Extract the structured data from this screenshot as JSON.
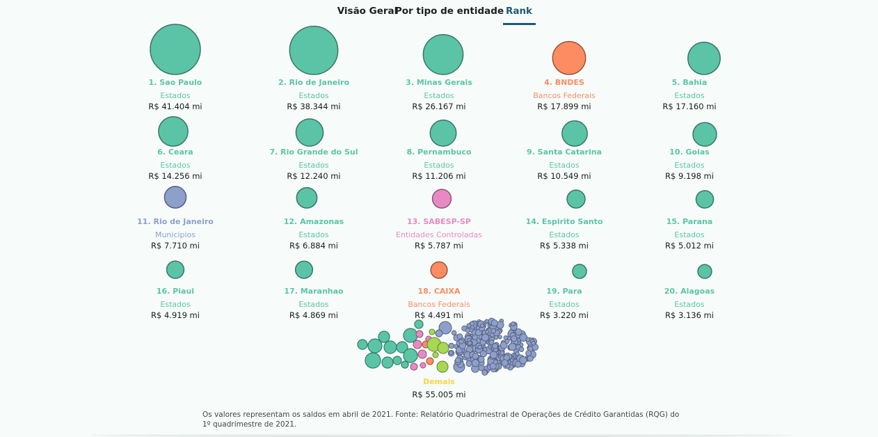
{
  "tabs": [
    {
      "label": "Visão Geral",
      "active": false
    },
    {
      "label": "Por tipo de entidade",
      "active": false
    },
    {
      "label": "Rank",
      "active": true
    }
  ],
  "colors": {
    "Estados": "#5cc4a6",
    "Bancos Federais": "#fd8c63",
    "Municipios": "#8d9fcb",
    "Entidades Controladas": "#e78ac3",
    "Demais": "#f7d44a",
    "outline": "#2e7f67",
    "demais_green": "#a6d854"
  },
  "chart_data": {
    "type": "bubble",
    "unit": "R$ mi",
    "items": [
      {
        "rank": 1,
        "name": "Sao Paulo",
        "category": "Estados",
        "value": 41404,
        "display": "R$ 41.404 mi"
      },
      {
        "rank": 2,
        "name": "Rio de Janeiro",
        "category": "Estados",
        "value": 38344,
        "display": "R$ 38.344 mi"
      },
      {
        "rank": 3,
        "name": "Minas Gerais",
        "category": "Estados",
        "value": 26167,
        "display": "R$ 26.167 mi"
      },
      {
        "rank": 4,
        "name": "BNDES",
        "category": "Bancos Federais",
        "value": 17899,
        "display": "R$ 17.899 mi"
      },
      {
        "rank": 5,
        "name": "Bahia",
        "category": "Estados",
        "value": 17160,
        "display": "R$ 17.160 mi"
      },
      {
        "rank": 6,
        "name": "Ceara",
        "category": "Estados",
        "value": 14256,
        "display": "R$ 14.256 mi"
      },
      {
        "rank": 7,
        "name": "Rio Grande do Sul",
        "category": "Estados",
        "value": 12240,
        "display": "R$ 12.240 mi"
      },
      {
        "rank": 8,
        "name": "Pernambuco",
        "category": "Estados",
        "value": 11206,
        "display": "R$ 11.206 mi"
      },
      {
        "rank": 9,
        "name": "Santa Catarina",
        "category": "Estados",
        "value": 10549,
        "display": "R$ 10.549 mi"
      },
      {
        "rank": 10,
        "name": "Goias",
        "category": "Estados",
        "value": 9198,
        "display": "R$ 9.198 mi"
      },
      {
        "rank": 11,
        "name": "Rio de Janeiro",
        "category": "Municipios",
        "value": 7710,
        "display": "R$ 7.710 mi"
      },
      {
        "rank": 12,
        "name": "Amazonas",
        "category": "Estados",
        "value": 6884,
        "display": "R$ 6.884 mi"
      },
      {
        "rank": 13,
        "name": "SABESP-SP",
        "category": "Entidades Controladas",
        "value": 5787,
        "display": "R$ 5.787 mi"
      },
      {
        "rank": 14,
        "name": "Espirito Santo",
        "category": "Estados",
        "value": 5338,
        "display": "R$ 5.338 mi"
      },
      {
        "rank": 15,
        "name": "Parana",
        "category": "Estados",
        "value": 5012,
        "display": "R$ 5.012 mi"
      },
      {
        "rank": 16,
        "name": "Piaui",
        "category": "Estados",
        "value": 4919,
        "display": "R$ 4.919 mi"
      },
      {
        "rank": 17,
        "name": "Maranhao",
        "category": "Estados",
        "value": 4869,
        "display": "R$ 4.869 mi"
      },
      {
        "rank": 18,
        "name": "CAIXA",
        "category": "Bancos Federais",
        "value": 4491,
        "display": "R$ 4.491 mi"
      },
      {
        "rank": 19,
        "name": "Para",
        "category": "Estados",
        "value": 3220,
        "display": "R$ 3.220 mi"
      },
      {
        "rank": 20,
        "name": "Alagoas",
        "category": "Estados",
        "value": 3136,
        "display": "R$ 3.136 mi"
      }
    ],
    "remainder": {
      "name": "Demais",
      "value": 55005,
      "display": "R$ 55.005 mi"
    }
  },
  "footer": {
    "note": "Os valores representam os saldos em abril de 2021. Fonte: Relatório Quadrimestral de Operações de Crédito Garantidas (RQG) do 1º quadrimestre de 2021."
  }
}
